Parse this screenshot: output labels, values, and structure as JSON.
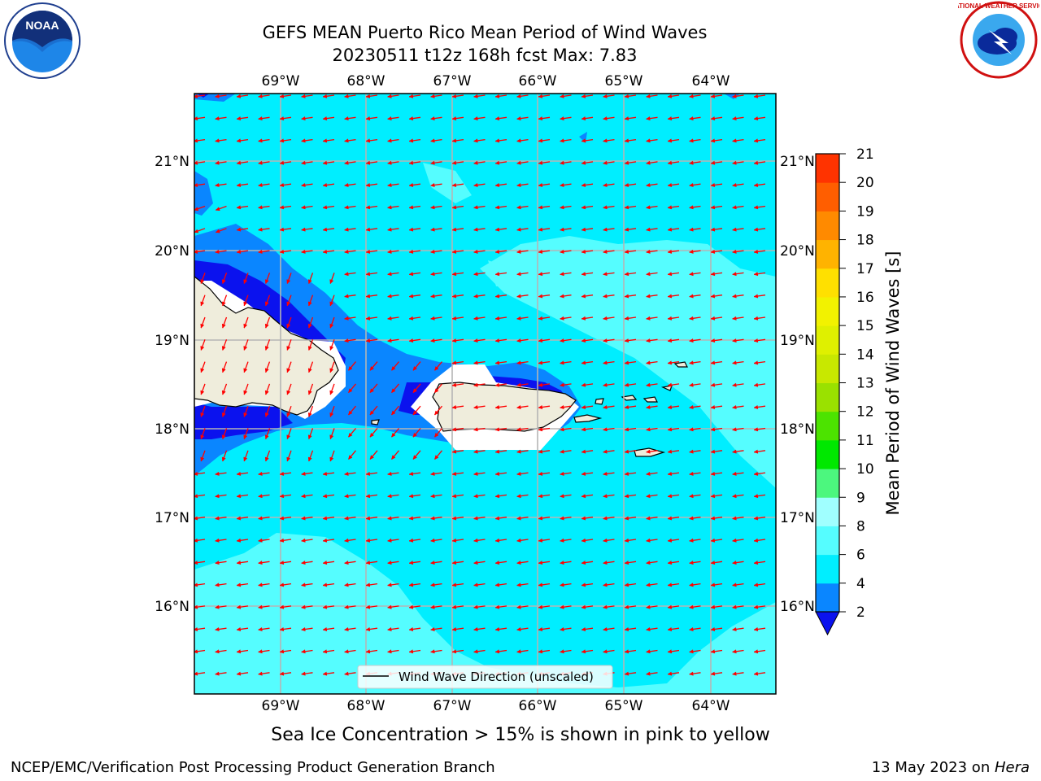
{
  "header": {
    "title_line1": "GEFS MEAN Puerto Rico Mean Period of Wind Waves",
    "title_line2": "20230511 t12z 168h fcst   Max: 7.83"
  },
  "map": {
    "lon_labels": [
      "69°W",
      "68°W",
      "67°W",
      "66°W",
      "65°W",
      "64°W"
    ],
    "lat_labels": [
      "21°N",
      "20°N",
      "19°N",
      "18°N",
      "17°N",
      "16°N"
    ],
    "legend_label": "Wind Wave Direction (unscaled)",
    "colors": {
      "ocean_base": "#00eeff",
      "light": "#55fdff",
      "mid": "#0a86ff",
      "deep": "#0b12ee",
      "land": "#efeddc",
      "arrows": "#ff0000"
    }
  },
  "colorbar": {
    "label": "Mean Period of Wind Waves [s]",
    "ticks": [
      "2",
      "4",
      "6",
      "8",
      "9",
      "10",
      "11",
      "12",
      "13",
      "14",
      "15",
      "16",
      "17",
      "18",
      "19",
      "20",
      "21"
    ],
    "colors": [
      "#0a86ff",
      "#00eeff",
      "#55fdff",
      "#a0ffff",
      "#4cf77e",
      "#00e800",
      "#4ce300",
      "#9ae100",
      "#c8e800",
      "#dff000",
      "#f2f200",
      "#ffe000",
      "#ffb300",
      "#ff8a00",
      "#ff5e00",
      "#ff3300",
      "#ff0000"
    ],
    "under_color": "#0b12ee"
  },
  "caption": "Sea Ice Concentration > 15% is shown in pink to yellow",
  "footer": {
    "left": "NCEP/EMC/Verification Post Processing Product Generation Branch",
    "date": "13 May 2023 on ",
    "machine": "Hera"
  },
  "logos": {
    "noaa": "NOAA",
    "nws": "NATIONAL WEATHER SERVICE"
  }
}
